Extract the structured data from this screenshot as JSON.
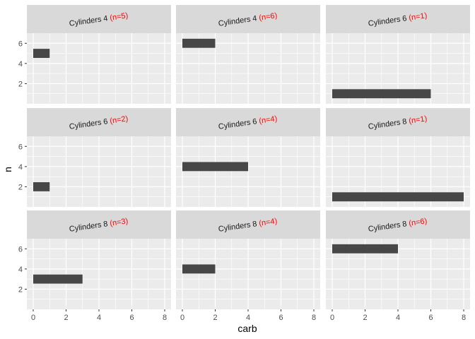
{
  "chart_data": {
    "type": "bar",
    "orientation": "horizontal",
    "facet_layout": "3x3",
    "xlabel": "carb",
    "ylabel": "n",
    "xlim": [
      0,
      8
    ],
    "ylim": [
      0,
      7
    ],
    "x_ticks": [
      "0",
      "2",
      "4",
      "6",
      "8"
    ],
    "y_ticks": [
      "2",
      "4",
      "6"
    ],
    "strip_prefix_label": "Cylinders",
    "colors": {
      "bar": "#474747",
      "panel_background": "#ebebeb",
      "grid": "#ffffff",
      "strip_background": "#d9d9d9",
      "count_text": "#ff0000"
    },
    "panels": [
      {
        "cyl": "4",
        "count": "(n=5)",
        "n": 5,
        "carb": 1
      },
      {
        "cyl": "4",
        "count": "(n=6)",
        "n": 6,
        "carb": 2
      },
      {
        "cyl": "6",
        "count": "(n=1)",
        "n": 1,
        "carb": 6
      },
      {
        "cyl": "6",
        "count": "(n=2)",
        "n": 2,
        "carb": 1
      },
      {
        "cyl": "6",
        "count": "(n=4)",
        "n": 4,
        "carb": 4
      },
      {
        "cyl": "8",
        "count": "(n=1)",
        "n": 1,
        "carb": 8
      },
      {
        "cyl": "8",
        "count": "(n=3)",
        "n": 3,
        "carb": 3
      },
      {
        "cyl": "8",
        "count": "(n=4)",
        "n": 4,
        "carb": 2
      },
      {
        "cyl": "8",
        "count": "(n=6)",
        "n": 6,
        "carb": 4
      }
    ]
  }
}
